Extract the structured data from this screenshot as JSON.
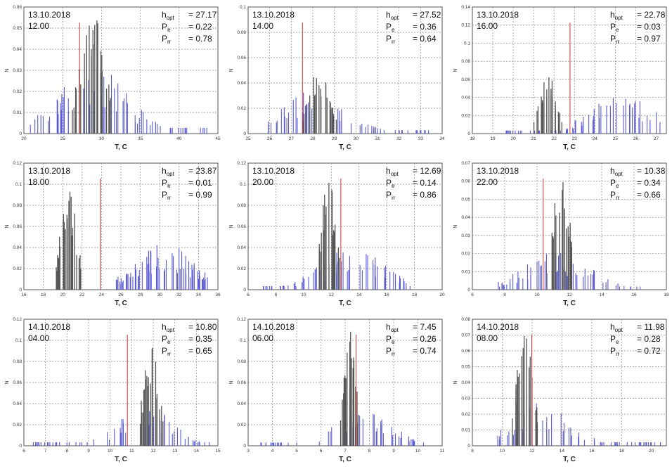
{
  "colors": {
    "obs": "#5a5ad2",
    "model": "#555555",
    "hopt_line": "#d43030",
    "grid": "#8a8a8a"
  },
  "chart_data": [
    {
      "type": "bar",
      "date": "13.10.2018",
      "time": "12.00",
      "hopt": "27.17",
      "pe": "0.22",
      "prr": "0.78",
      "xlabel": "T, C",
      "ylabel": "N",
      "xlim": [
        20,
        45
      ],
      "ylim": [
        0,
        0.06
      ],
      "xticks": [
        "20",
        "25",
        "30",
        "35",
        "40",
        "45"
      ],
      "yticks": [
        "0",
        "0.01",
        "0.02",
        "0.03",
        "0.04",
        "0.05",
        "0.06"
      ],
      "hopt_value": 27.17,
      "obs": {
        "center": 28.5,
        "spread": 4.5,
        "peak": 0.034,
        "n": 60,
        "min": 20.5,
        "max": 44
      },
      "model": {
        "center": 28.8,
        "spread": 1.6,
        "peak": 0.058,
        "n": 28
      }
    },
    {
      "type": "bar",
      "date": "13.10.2018",
      "time": "14.00",
      "hopt": "27.52",
      "pe": "0.36",
      "prr": "0.64",
      "xlabel": "T, C",
      "ylabel": "N",
      "xlim": [
        25,
        34
      ],
      "ylim": [
        0,
        0.1
      ],
      "xticks": [
        "25",
        "26",
        "27",
        "28",
        "29",
        "30",
        "31",
        "32",
        "33",
        "34"
      ],
      "yticks": [
        "0",
        "0.02",
        "0.04",
        "0.06",
        "0.08",
        "0.1"
      ],
      "hopt_value": 27.52,
      "obs": {
        "center": 28.0,
        "spread": 1.5,
        "peak": 0.034,
        "n": 55,
        "min": 25.8,
        "max": 33.5
      },
      "model": {
        "center": 28.3,
        "spread": 0.5,
        "peak": 0.052,
        "n": 22
      }
    },
    {
      "type": "bar",
      "date": "13.10.2018",
      "time": "16.00",
      "hopt": "22.78",
      "pe": "0.03",
      "prr": "0.97",
      "xlabel": "T, C",
      "ylabel": "N",
      "xlim": [
        18,
        27.5
      ],
      "ylim": [
        0,
        0.14
      ],
      "xticks": [
        "18",
        "19",
        "20",
        "21",
        "22",
        "23",
        "24",
        "25",
        "26",
        "27"
      ],
      "yticks": [
        "0",
        "0.02",
        "0.04",
        "0.06",
        "0.08",
        "0.1",
        "0.12",
        "0.14"
      ],
      "hopt_value": 22.78,
      "obs": {
        "center": 25.3,
        "spread": 1.6,
        "peak": 0.042,
        "n": 60,
        "min": 19.5,
        "max": 27.4
      },
      "model": {
        "center": 21.7,
        "spread": 0.45,
        "peak": 0.066,
        "n": 22
      }
    },
    {
      "type": "bar",
      "date": "13.10.2018",
      "time": "18.00",
      "hopt": "23.87",
      "pe": "0.01",
      "prr": "0.99",
      "xlabel": "T, C",
      "ylabel": "N",
      "xlim": [
        16,
        36
      ],
      "ylim": [
        0,
        0.12
      ],
      "xticks": [
        "16",
        "18",
        "20",
        "22",
        "24",
        "26",
        "28",
        "30",
        "32",
        "34",
        "36"
      ],
      "yticks": [
        "0",
        "0.02",
        "0.04",
        "0.06",
        "0.08",
        "0.1",
        "0.12"
      ],
      "hopt_value": 23.87,
      "obs": {
        "center": 30.5,
        "spread": 3.0,
        "peak": 0.045,
        "n": 70,
        "min": 25.5,
        "max": 35
      },
      "model": {
        "center": 20.6,
        "spread": 0.8,
        "peak": 0.1,
        "n": 24
      }
    },
    {
      "type": "bar",
      "date": "13.10.2018",
      "time": "20.00",
      "hopt": "12.69",
      "pe": "0.14",
      "prr": "0.86",
      "xlabel": "T, C",
      "ylabel": "N",
      "xlim": [
        6,
        20
      ],
      "ylim": [
        0,
        0.12
      ],
      "xticks": [
        "6",
        "8",
        "10",
        "12",
        "14",
        "16",
        "18",
        "20"
      ],
      "yticks": [
        "0",
        "0.02",
        "0.04",
        "0.06",
        "0.08",
        "0.1",
        "0.12"
      ],
      "hopt_value": 12.69,
      "obs": {
        "center": 13.5,
        "spread": 2.3,
        "peak": 0.042,
        "n": 65,
        "min": 7,
        "max": 18
      },
      "model": {
        "center": 11.8,
        "spread": 0.5,
        "peak": 0.11,
        "n": 20
      }
    },
    {
      "type": "bar",
      "date": "13.10.2018",
      "time": "22.00",
      "hopt": "10.38",
      "pe": "0.34",
      "prr": "0.66",
      "xlabel": "T, C",
      "ylabel": "N",
      "xlim": [
        6,
        18
      ],
      "ylim": [
        0,
        0.07
      ],
      "xticks": [
        "6",
        "8",
        "10",
        "12",
        "14",
        "16",
        "18"
      ],
      "yticks": [
        "0",
        "0.01",
        "0.02",
        "0.03",
        "0.04",
        "0.05",
        "0.06",
        "0.07"
      ],
      "hopt_value": 10.38,
      "obs": {
        "center": 11.2,
        "spread": 2.0,
        "peak": 0.022,
        "n": 60,
        "min": 7.2,
        "max": 16.5
      },
      "model": {
        "center": 11.5,
        "spread": 0.5,
        "peak": 0.068,
        "n": 20
      }
    },
    {
      "type": "bar",
      "date": "14.10.2018",
      "time": "04.00",
      "hopt": "10.80",
      "pe": "0.35",
      "prr": "0.65",
      "xlabel": "T, C",
      "ylabel": "N",
      "xlim": [
        6,
        15
      ],
      "ylim": [
        0,
        0.12
      ],
      "xticks": [
        "6",
        "7",
        "8",
        "9",
        "10",
        "11",
        "12",
        "13",
        "14",
        "15"
      ],
      "yticks": [
        "0",
        "0.02",
        "0.04",
        "0.06",
        "0.08",
        "0.1",
        "0.12"
      ],
      "hopt_value": 10.8,
      "obs": {
        "center": 11.6,
        "spread": 1.2,
        "peak": 0.042,
        "n": 60,
        "min": 6.3,
        "max": 14.8
      },
      "model": {
        "center": 11.9,
        "spread": 0.35,
        "peak": 0.1,
        "n": 20
      }
    },
    {
      "type": "bar",
      "date": "14.10.2018",
      "time": "06.00",
      "hopt": "7.45",
      "pe": "0.26",
      "prr": "0.74",
      "xlabel": "T, C",
      "ylabel": "N",
      "xlim": [
        3,
        11
      ],
      "ylim": [
        0,
        0.12
      ],
      "xticks": [
        "3",
        "4",
        "5",
        "6",
        "7",
        "8",
        "9",
        "10",
        "11"
      ],
      "yticks": [
        "0",
        "0.02",
        "0.04",
        "0.06",
        "0.08",
        "0.1",
        "0.12"
      ],
      "hopt_value": 7.45,
      "obs": {
        "center": 7.8,
        "spread": 1.1,
        "peak": 0.038,
        "n": 55,
        "min": 3.5,
        "max": 10.5
      },
      "model": {
        "center": 7.2,
        "spread": 0.25,
        "peak": 0.11,
        "n": 18
      }
    },
    {
      "type": "bar",
      "date": "14.10.2018",
      "time": "08.00",
      "hopt": "11.98",
      "pe": "0.28",
      "prr": "0.72",
      "xlabel": "T, C",
      "ylabel": "N",
      "xlim": [
        8,
        21
      ],
      "ylim": [
        0,
        0.08
      ],
      "xticks": [
        "8",
        "10",
        "12",
        "14",
        "16",
        "18",
        "20"
      ],
      "yticks": [
        "0",
        "0.01",
        "0.02",
        "0.03",
        "0.04",
        "0.05",
        "0.06",
        "0.07",
        "0.08"
      ],
      "hopt_value": 11.98,
      "obs": {
        "center": 12.5,
        "spread": 2.0,
        "peak": 0.028,
        "n": 60,
        "min": 9.5,
        "max": 20.8
      },
      "model": {
        "center": 11.5,
        "spread": 0.55,
        "peak": 0.075,
        "n": 22
      }
    }
  ]
}
